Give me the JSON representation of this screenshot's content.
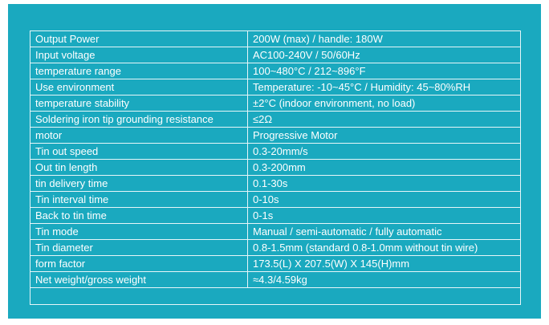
{
  "panel_color": "#1aa9bf",
  "specs": [
    {
      "label": "Output Power",
      "value": "200W (max) / handle: 180W"
    },
    {
      "label": "Input voltage",
      "value": "AC100-240V / 50/60Hz"
    },
    {
      "label": "temperature range",
      "value": "100~480°C / 212~896°F"
    },
    {
      "label": "Use environment",
      "value": "Temperature: -10~45°C / Humidity: 45~80%RH"
    },
    {
      "label": "temperature stability",
      "value": "±2°C (indoor environment, no load)"
    },
    {
      "label": "Soldering iron tip grounding resistance",
      "value": "≤2Ω"
    },
    {
      "label": "motor",
      "value": "Progressive Motor"
    },
    {
      "label": "Tin out speed",
      "value": "0.3-20mm/s"
    },
    {
      "label": "Out tin length",
      "value": "0.3-200mm"
    },
    {
      "label": "tin delivery time",
      "value": "0.1-30s"
    },
    {
      "label": "Tin interval time",
      "value": "0-10s"
    },
    {
      "label": "Back to tin time",
      "value": "0-1s"
    },
    {
      "label": "Tin mode",
      "value": "Manual / semi-automatic / fully automatic"
    },
    {
      "label": "Tin diameter",
      "value": "0.8-1.5mm (standard 0.8-1.0mm without tin wire)"
    },
    {
      "label": "form factor",
      "value": "173.5(L) X 207.5(W) X 145(H)mm"
    },
    {
      "label": "Net weight/gross weight",
      "value": "≈4.3/4.59kg"
    }
  ]
}
